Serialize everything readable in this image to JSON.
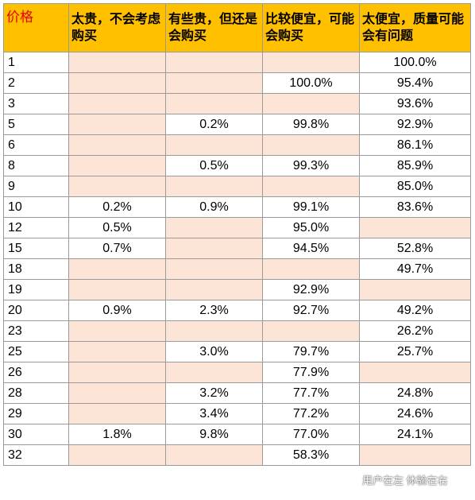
{
  "table": {
    "headers": {
      "price": "价格",
      "col1": "太贵，不会考虑购买",
      "col2": "有些贵，但还是会购买",
      "col3": "比较便宜，可能会购买",
      "col4": "太便宜，质量可能会有问题"
    },
    "rows": [
      {
        "price": "1",
        "c1": "",
        "c2": "",
        "c3": "",
        "c4": "100.0%"
      },
      {
        "price": "2",
        "c1": "",
        "c2": "",
        "c3": "100.0%",
        "c4": "95.4%"
      },
      {
        "price": "3",
        "c1": "",
        "c2": "",
        "c3": "",
        "c4": "93.6%"
      },
      {
        "price": "5",
        "c1": "",
        "c2": "0.2%",
        "c3": "99.8%",
        "c4": "92.9%"
      },
      {
        "price": "6",
        "c1": "",
        "c2": "",
        "c3": "",
        "c4": "86.1%"
      },
      {
        "price": "8",
        "c1": "",
        "c2": "0.5%",
        "c3": "99.3%",
        "c4": "85.9%"
      },
      {
        "price": "9",
        "c1": "",
        "c2": "",
        "c3": "",
        "c4": "85.0%"
      },
      {
        "price": "10",
        "c1": "0.2%",
        "c2": "0.9%",
        "c3": "99.1%",
        "c4": "83.6%"
      },
      {
        "price": "12",
        "c1": "0.5%",
        "c2": "",
        "c3": "95.0%",
        "c4": ""
      },
      {
        "price": "15",
        "c1": "0.7%",
        "c2": "",
        "c3": "94.5%",
        "c4": "52.8%"
      },
      {
        "price": "18",
        "c1": "",
        "c2": "",
        "c3": "",
        "c4": "49.7%"
      },
      {
        "price": "19",
        "c1": "",
        "c2": "",
        "c3": "92.9%",
        "c4": ""
      },
      {
        "price": "20",
        "c1": "0.9%",
        "c2": "2.3%",
        "c3": "92.7%",
        "c4": "49.2%"
      },
      {
        "price": "23",
        "c1": "",
        "c2": "",
        "c3": "",
        "c4": "26.2%"
      },
      {
        "price": "25",
        "c1": "",
        "c2": "3.0%",
        "c3": "79.7%",
        "c4": "25.7%"
      },
      {
        "price": "26",
        "c1": "",
        "c2": "",
        "c3": "77.9%",
        "c4": ""
      },
      {
        "price": "28",
        "c1": "",
        "c2": "3.2%",
        "c3": "77.7%",
        "c4": "24.8%"
      },
      {
        "price": "29",
        "c1": "",
        "c2": "3.4%",
        "c3": "77.2%",
        "c4": "24.6%"
      },
      {
        "price": "30",
        "c1": "1.8%",
        "c2": "9.8%",
        "c3": "77.0%",
        "c4": "24.1%"
      },
      {
        "price": "32",
        "c1": "",
        "c2": "",
        "c3": "58.3%",
        "c4": ""
      }
    ]
  },
  "watermark": {
    "text": "用户在左 体验在右",
    "icon": "wechat-icon"
  },
  "colors": {
    "header_bg": "#ffc000",
    "empty_cell": "#fce4d6",
    "price_header_text": "#e60000",
    "border": "#9a9a9a"
  }
}
